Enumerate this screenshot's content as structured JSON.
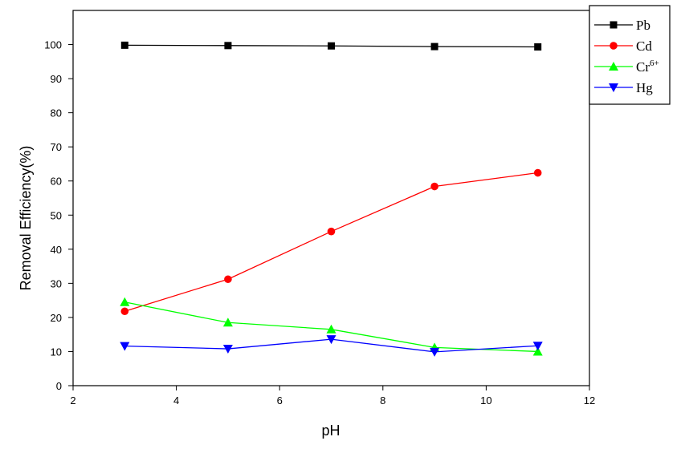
{
  "chart_data": {
    "type": "line",
    "xlabel": "pH",
    "ylabel": "Removal Efficiency(%)",
    "xlim": [
      2,
      12
    ],
    "ylim": [
      0,
      110
    ],
    "xticks": [
      2,
      4,
      6,
      8,
      10,
      12
    ],
    "yticks": [
      0,
      10,
      20,
      30,
      40,
      50,
      60,
      70,
      80,
      90,
      100
    ],
    "grid": false,
    "legend_position": "top-right",
    "x": [
      3,
      5,
      7,
      9,
      11
    ],
    "series": [
      {
        "name": "Pb",
        "name_sup": "",
        "color": "#000000",
        "marker": "square",
        "values": [
          99.8,
          99.7,
          99.6,
          99.4,
          99.3
        ]
      },
      {
        "name": "Cd",
        "name_sup": "",
        "color": "#ff0000",
        "marker": "circle",
        "values": [
          21.8,
          31.2,
          45.2,
          58.4,
          62.4
        ]
      },
      {
        "name": "Cr",
        "name_sup": "6+",
        "color": "#00ff00",
        "marker": "triangle-up",
        "values": [
          24.5,
          18.5,
          16.5,
          11.2,
          10.0
        ]
      },
      {
        "name": "Hg",
        "name_sup": "",
        "color": "#0000ff",
        "marker": "triangle-down",
        "values": [
          11.6,
          10.8,
          13.6,
          9.9,
          11.7
        ]
      }
    ]
  }
}
